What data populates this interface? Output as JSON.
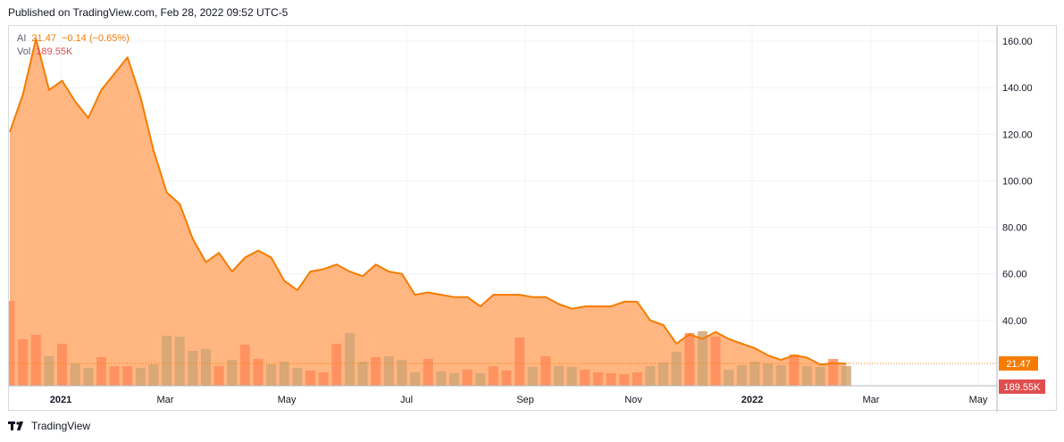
{
  "header": {
    "published": "Published on TradingView.com, Feb 28, 2022 09:52 UTC-5"
  },
  "legend": {
    "symbol": "AI",
    "price": "21.47",
    "change": "−0.14 (−0.65%)",
    "vol_label": "Vol",
    "vol_value": "189.55K"
  },
  "footer": {
    "brand": "TradingView"
  },
  "colors": {
    "line": "#f57c00",
    "area": "#ffb27a",
    "vol_up": "#ff8c5a",
    "vol_down": "#d4a574",
    "vol_overlap": "#c8a884",
    "price_badge": "#f57c00",
    "vol_badge": "#e04e4e",
    "grid": "#f0f3fa",
    "axis_text": "#131722"
  },
  "chart_data": {
    "type": "area",
    "title": "",
    "xlabel": "",
    "ylabel": "",
    "y_axis_side": "right",
    "ylim": [
      0,
      175
    ],
    "yticks": [
      "40.00",
      "60.00",
      "80.00",
      "100.00",
      "120.00",
      "140.00",
      "160.00"
    ],
    "xticks": [
      "2021",
      "Mar",
      "May",
      "Jul",
      "Sep",
      "Nov",
      "2022",
      "Mar",
      "May"
    ],
    "xtick_bold": [
      true,
      false,
      false,
      false,
      false,
      false,
      true,
      false,
      false
    ],
    "last_price_label": "21.47",
    "last_volume_label": "189.55K",
    "grid": true,
    "series": [
      {
        "type": "area",
        "values": [
          121,
          137,
          161,
          139,
          143,
          134,
          127,
          139,
          146,
          153,
          136,
          113,
          95,
          90,
          75,
          65,
          69,
          61,
          67,
          70,
          67,
          57,
          53,
          61,
          62,
          64,
          61,
          59,
          64,
          61,
          60,
          51,
          52,
          51,
          50,
          50,
          46,
          51,
          51,
          51,
          50,
          50,
          47,
          45,
          46,
          46,
          46,
          48,
          48,
          40,
          38,
          30,
          34,
          32,
          35,
          32,
          30,
          28,
          25,
          23,
          25,
          24,
          21,
          21.6,
          21.47
        ]
      },
      {
        "type": "volume",
        "values": [
          0.95,
          0.52,
          0.57,
          0.33,
          0.47,
          0.25,
          0.2,
          0.32,
          0.22,
          0.22,
          0.2,
          0.24,
          0.56,
          0.55,
          0.39,
          0.41,
          0.22,
          0.29,
          0.46,
          0.3,
          0.24,
          0.27,
          0.2,
          0.17,
          0.15,
          0.47,
          0.59,
          0.27,
          0.32,
          0.33,
          0.29,
          0.15,
          0.3,
          0.16,
          0.14,
          0.18,
          0.14,
          0.22,
          0.17,
          0.54,
          0.21,
          0.33,
          0.22,
          0.21,
          0.18,
          0.15,
          0.14,
          0.13,
          0.15,
          0.22,
          0.26,
          0.38,
          0.59,
          0.61,
          0.55,
          0.18,
          0.23,
          0.27,
          0.25,
          0.23,
          0.35,
          0.22,
          0.21,
          0.3,
          0.22
        ]
      }
    ]
  }
}
